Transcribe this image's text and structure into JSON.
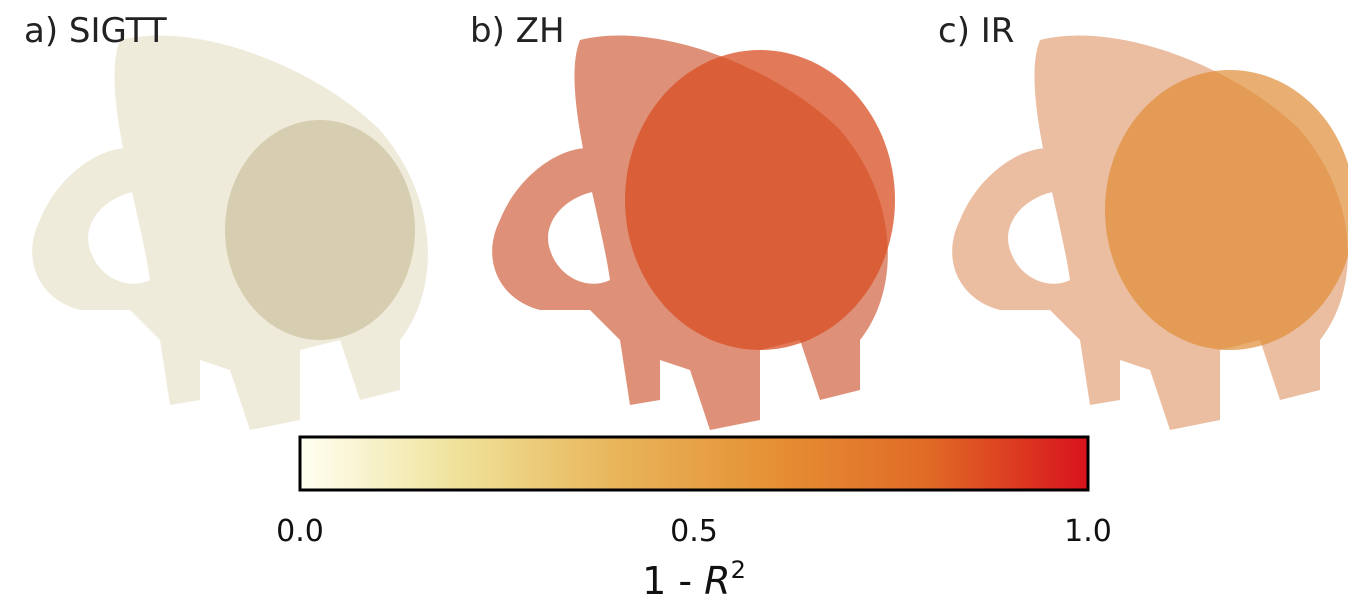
{
  "panels": [
    {
      "label": "a) SIGTT"
    },
    {
      "label": "b) ZH"
    },
    {
      "label": "c) IR"
    }
  ],
  "colorbar": {
    "lim": [
      0,
      1
    ],
    "ticks": [
      {
        "value": 0,
        "label": "0.0"
      },
      {
        "value": 0.5,
        "label": "0.5"
      },
      {
        "value": 1,
        "label": "1.0"
      }
    ],
    "label": {
      "prefix": "1 - ",
      "symbol": "R",
      "exponent": "2"
    }
  }
}
